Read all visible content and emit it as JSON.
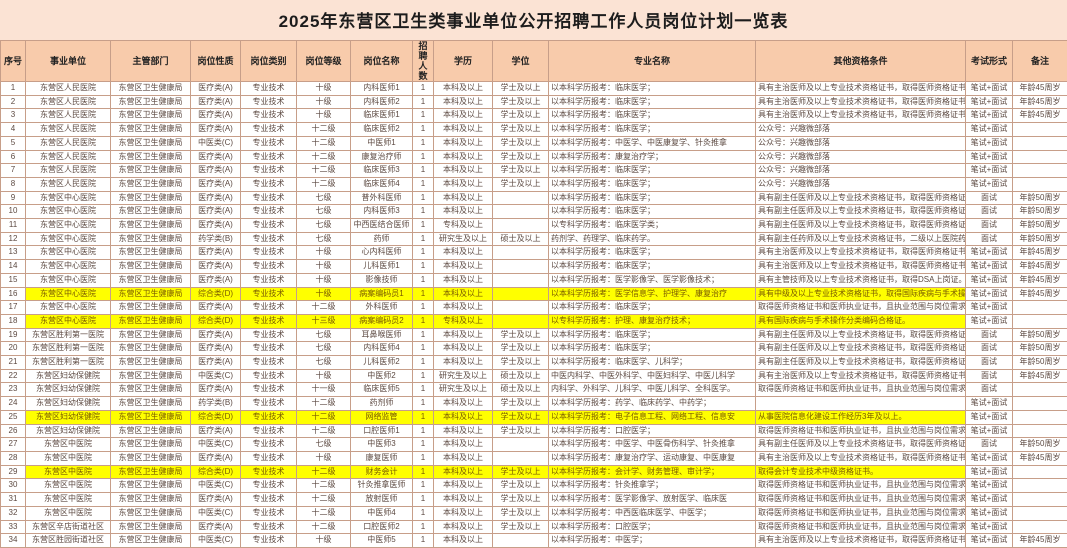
{
  "title": "2025年东营区卫生类事业单位公开招聘工作人员岗位计划一览表",
  "colors": {
    "page_background": "#fbe3d4",
    "header_background": "#f8cbab",
    "highlight": "#ffff00",
    "grid_line": "#c79e89"
  },
  "table": {
    "headers": [
      "序号",
      "事业单位",
      "主管部门",
      "岗位性质",
      "岗位类别",
      "岗位等级",
      "岗位名称",
      "招聘人数",
      "学历",
      "学位",
      "专业名称",
      "其他资格条件",
      "考试形式",
      "备注"
    ],
    "rows": [
      {
        "highlight": false,
        "cells": [
          "1",
          "东营区人民医院",
          "东营区卫生健康局",
          "医疗类(A)",
          "专业技术",
          "十级",
          "内科医师1",
          "1",
          "本科及以上",
          "学士及以上",
          "以本科学历报考：临床医学；",
          "具有主治医师及以上专业技术资格证书，取得医师资格证书",
          "笔试+面试",
          "年龄45周岁"
        ]
      },
      {
        "highlight": false,
        "cells": [
          "2",
          "东营区人民医院",
          "东营区卫生健康局",
          "医疗类(A)",
          "专业技术",
          "十级",
          "内科医师2",
          "1",
          "本科及以上",
          "学士及以上",
          "以本科学历报考：临床医学；",
          "具有主治医师及以上专业技术资格证书，取得医师资格证书",
          "笔试+面试",
          "年龄45周岁"
        ]
      },
      {
        "highlight": false,
        "cells": [
          "3",
          "东营区人民医院",
          "东营区卫生健康局",
          "医疗类(A)",
          "专业技术",
          "十级",
          "临床医师1",
          "1",
          "本科及以上",
          "学士及以上",
          "以本科学历报考：临床医学；",
          "具有主治医师及以上专业技术资格证书，取得医师资格证书",
          "笔试+面试",
          "年龄45周岁"
        ]
      },
      {
        "highlight": false,
        "cells": [
          "4",
          "东营区人民医院",
          "东营区卫生健康局",
          "医疗类(A)",
          "专业技术",
          "十二级",
          "临床医师2",
          "1",
          "本科及以上",
          "学士及以上",
          "以本科学历报考：临床医学；",
          "公众号：兴趣微部落",
          "笔试+面试",
          ""
        ]
      },
      {
        "highlight": false,
        "cells": [
          "5",
          "东营区人民医院",
          "东营区卫生健康局",
          "中医类(C)",
          "专业技术",
          "十二级",
          "中医师1",
          "1",
          "本科及以上",
          "学士及以上",
          "以本科学历报考：中医学、中医康复学、针灸推拿",
          "公众号：兴趣微部落",
          "笔试+面试",
          ""
        ]
      },
      {
        "highlight": false,
        "cells": [
          "6",
          "东营区人民医院",
          "东营区卫生健康局",
          "医疗类(A)",
          "专业技术",
          "十二级",
          "康复治疗师",
          "1",
          "本科及以上",
          "学士及以上",
          "以本科学历报考：康复治疗学；",
          "公众号：兴趣微部落",
          "笔试+面试",
          ""
        ]
      },
      {
        "highlight": false,
        "cells": [
          "7",
          "东营区人民医院",
          "东营区卫生健康局",
          "医疗类(A)",
          "专业技术",
          "十二级",
          "临床医师3",
          "1",
          "本科及以上",
          "学士及以上",
          "以本科学历报考：临床医学；",
          "公众号：兴趣微部落",
          "笔试+面试",
          ""
        ]
      },
      {
        "highlight": false,
        "cells": [
          "8",
          "东营区人民医院",
          "东营区卫生健康局",
          "医疗类(A)",
          "专业技术",
          "十二级",
          "临床医师4",
          "1",
          "本科及以上",
          "学士及以上",
          "以本科学历报考：临床医学；",
          "公众号：兴趣微部落",
          "笔试+面试",
          ""
        ]
      },
      {
        "highlight": false,
        "cells": [
          "9",
          "东营区中心医院",
          "东营区卫生健康局",
          "医疗类(A)",
          "专业技术",
          "七级",
          "普外科医师",
          "1",
          "本科及以上",
          "",
          "以本科学历报考：临床医学；",
          "具有副主任医师及以上专业技术资格证书，取得医师资格证",
          "面试",
          "年龄50周岁"
        ]
      },
      {
        "highlight": false,
        "cells": [
          "10",
          "东营区中心医院",
          "东营区卫生健康局",
          "医疗类(A)",
          "专业技术",
          "七级",
          "内科医师3",
          "1",
          "本科及以上",
          "",
          "以本科学历报考：临床医学；",
          "具有副主任医师及以上专业技术资格证书，取得医师资格证",
          "面试",
          "年龄50周岁"
        ]
      },
      {
        "highlight": false,
        "cells": [
          "11",
          "东营区中心医院",
          "东营区卫生健康局",
          "医疗类(A)",
          "专业技术",
          "七级",
          "中西医结合医师",
          "1",
          "专科及以上",
          "",
          "以专科学历报考：临床医学类；",
          "具有副主任医师及以上专业技术资格证书，取得医师资格证",
          "面试",
          "年龄50周岁"
        ]
      },
      {
        "highlight": false,
        "cells": [
          "12",
          "东营区中心医院",
          "东营区卫生健康局",
          "药学类(B)",
          "专业技术",
          "七级",
          "药师",
          "1",
          "研究生及以上",
          "硕士及以上",
          "药剂学、药理学、临床药学。",
          "具有副主任药师及以上专业技术资格证书，二级以上医院药",
          "面试",
          "年龄50周岁"
        ]
      },
      {
        "highlight": false,
        "cells": [
          "13",
          "东营区中心医院",
          "东营区卫生健康局",
          "医疗类(A)",
          "专业技术",
          "十级",
          "心内科医师",
          "1",
          "本科及以上",
          "",
          "以本科学历报考：临床医学；",
          "具有主治医师及以上专业技术资格证书，取得医师资格证书",
          "笔试+面试",
          "年龄45周岁"
        ]
      },
      {
        "highlight": false,
        "cells": [
          "14",
          "东营区中心医院",
          "东营区卫生健康局",
          "医疗类(A)",
          "专业技术",
          "十级",
          "儿科医师1",
          "1",
          "本科及以上",
          "",
          "以本科学历报考：临床医学；",
          "具有主治医师及以上专业技术资格证书，取得医师资格证书",
          "笔试+面试",
          "年龄45周岁"
        ]
      },
      {
        "highlight": false,
        "cells": [
          "15",
          "东营区中心医院",
          "东营区卫生健康局",
          "医疗类(A)",
          "专业技术",
          "十级",
          "影像技师",
          "1",
          "本科及以上",
          "",
          "以本科学历报考：医学影像学、医学影像技术；",
          "具有主管技师及以上专业技术资格证书，取得DSA上岗证。",
          "笔试+面试",
          "年龄45周岁"
        ]
      },
      {
        "highlight": true,
        "cells": [
          "16",
          "东营区中心医院",
          "东营区卫生健康局",
          "综合类(D)",
          "专业技术",
          "十级",
          "病案编码员1",
          "1",
          "本科及以上",
          "",
          "以本科学历报考：医学信息学、护理学、康复治疗",
          "具有中级及以上专业技术资格证书，取得国际疾病与手术操",
          "笔试+面试",
          "年龄45周岁"
        ]
      },
      {
        "highlight": false,
        "cells": [
          "17",
          "东营区中心医院",
          "东营区卫生健康局",
          "医疗类(A)",
          "专业技术",
          "十二级",
          "外科医师",
          "1",
          "本科及以上",
          "",
          "以本科学历报考：临床医学；",
          "取得医师资格证书和医师执业证书，且执业范围与岗位需求",
          "笔试+面试",
          ""
        ]
      },
      {
        "highlight": true,
        "cells": [
          "18",
          "东营区中心医院",
          "东营区卫生健康局",
          "综合类(D)",
          "专业技术",
          "十三级",
          "病案编码员2",
          "1",
          "专科及以上",
          "",
          "以专科学历报考：护理、康复治疗技术；",
          "具有国际疾病与手术操作分类编码合格证。",
          "笔试+面试",
          ""
        ]
      },
      {
        "highlight": false,
        "cells": [
          "19",
          "东营区胜利第一医院",
          "东营区卫生健康局",
          "医疗类(A)",
          "专业技术",
          "七级",
          "耳鼻喉医师",
          "1",
          "本科及以上",
          "学士及以上",
          "以本科学历报考：临床医学；",
          "具有副主任医师及以上专业技术资格证书，取得医师资格证",
          "面试",
          "年龄50周岁"
        ]
      },
      {
        "highlight": false,
        "cells": [
          "20",
          "东营区胜利第一医院",
          "东营区卫生健康局",
          "医疗类(A)",
          "专业技术",
          "七级",
          "内科医师4",
          "1",
          "本科及以上",
          "学士及以上",
          "以本科学历报考：临床医学；",
          "具有副主任医师及以上专业技术资格证书，取得医师资格证",
          "面试",
          "年龄50周岁"
        ]
      },
      {
        "highlight": false,
        "cells": [
          "21",
          "东营区胜利第一医院",
          "东营区卫生健康局",
          "医疗类(A)",
          "专业技术",
          "七级",
          "儿科医师2",
          "1",
          "本科及以上",
          "学士及以上",
          "以本科学历报考：临床医学、儿科学；",
          "具有副主任医师及以上专业技术资格证书，取得医师资格证",
          "面试",
          "年龄50周岁"
        ]
      },
      {
        "highlight": false,
        "cells": [
          "22",
          "东营区妇幼保健院",
          "东营区卫生健康局",
          "中医类(C)",
          "专业技术",
          "十级",
          "中医师2",
          "1",
          "研究生及以上",
          "硕士及以上",
          "中医内科学、中医外科学、中医妇科学、中医儿科学",
          "具有主治医师及以上专业技术资格证书，取得医师资格证书",
          "面试",
          "年龄45周岁"
        ]
      },
      {
        "highlight": false,
        "cells": [
          "23",
          "东营区妇幼保健院",
          "东营区卫生健康局",
          "医疗类(A)",
          "专业技术",
          "十一级",
          "临床医师5",
          "1",
          "研究生及以上",
          "硕士及以上",
          "内科学、外科学、儿科学、中医儿科学、全科医学。",
          "取得医师资格证书和医师执业证书，且执业范围与岗位需求",
          "面试",
          ""
        ]
      },
      {
        "highlight": false,
        "cells": [
          "24",
          "东营区妇幼保健院",
          "东营区卫生健康局",
          "药学类(B)",
          "专业技术",
          "十二级",
          "药剂师",
          "1",
          "本科及以上",
          "学士及以上",
          "以本科学历报考：药学、临床药学、中药学；",
          "",
          "笔试+面试",
          ""
        ]
      },
      {
        "highlight": true,
        "cells": [
          "25",
          "东营区妇幼保健院",
          "东营区卫生健康局",
          "综合类(D)",
          "专业技术",
          "十二级",
          "网络监管",
          "1",
          "本科及以上",
          "学士及以上",
          "以本科学历报考：电子信息工程、网络工程、信息安",
          "从事医院信息化建设工作经历3年及以上。",
          "笔试+面试",
          ""
        ]
      },
      {
        "highlight": false,
        "cells": [
          "26",
          "东营区妇幼保健院",
          "东营区卫生健康局",
          "医疗类(A)",
          "专业技术",
          "十二级",
          "口腔医师1",
          "1",
          "本科及以上",
          "学士及以上",
          "以本科学历报考：口腔医学；",
          "取得医师资格证书和医师执业证书，且执业范围与岗位需求",
          "笔试+面试",
          ""
        ]
      },
      {
        "highlight": false,
        "cells": [
          "27",
          "东营区中医院",
          "东营区卫生健康局",
          "中医类(C)",
          "专业技术",
          "七级",
          "中医师3",
          "1",
          "本科及以上",
          "",
          "以本科学历报考：中医学、中医骨伤科学、针灸推拿",
          "具有副主任医师及以上专业技术资格证书，取得医师资格证",
          "面试",
          "年龄50周岁"
        ]
      },
      {
        "highlight": false,
        "cells": [
          "28",
          "东营区中医院",
          "东营区卫生健康局",
          "医疗类(A)",
          "专业技术",
          "十级",
          "康复医师",
          "1",
          "本科及以上",
          "",
          "以本科学历报考：康复治疗学、运动康复、中医康复",
          "具有主治医师及以上专业技术资格证书，取得医师资格证书",
          "笔试+面试",
          "年龄45周岁"
        ]
      },
      {
        "highlight": true,
        "cells": [
          "29",
          "东营区中医院",
          "东营区卫生健康局",
          "综合类(D)",
          "专业技术",
          "十二级",
          "财务会计",
          "1",
          "本科及以上",
          "学士及以上",
          "以本科学历报考：会计学、财务管理、审计学；",
          "取得会计专业技术中级资格证书。",
          "笔试+面试",
          ""
        ]
      },
      {
        "highlight": false,
        "cells": [
          "30",
          "东营区中医院",
          "东营区卫生健康局",
          "中医类(C)",
          "专业技术",
          "十二级",
          "针灸推拿医师",
          "1",
          "本科及以上",
          "学士及以上",
          "以本科学历报考：针灸推拿学；",
          "取得医师资格证书和医师执业证书，且执业范围与岗位需求",
          "笔试+面试",
          ""
        ]
      },
      {
        "highlight": false,
        "cells": [
          "31",
          "东营区中医院",
          "东营区卫生健康局",
          "医疗类(A)",
          "专业技术",
          "十二级",
          "放射医师",
          "1",
          "本科及以上",
          "学士及以上",
          "以本科学历报考：医学影像学、放射医学、临床医",
          "取得医师资格证书和医师执业证书，且执业范围与岗位需求",
          "笔试+面试",
          ""
        ]
      },
      {
        "highlight": false,
        "cells": [
          "32",
          "东营区中医院",
          "东营区卫生健康局",
          "中医类(C)",
          "专业技术",
          "十二级",
          "中医师4",
          "1",
          "本科及以上",
          "学士及以上",
          "以本科学历报考：中西医临床医学、中医学；",
          "取得医师资格证书和医师执业证书，且执业范围与岗位需求",
          "笔试+面试",
          ""
        ]
      },
      {
        "highlight": false,
        "cells": [
          "33",
          "东营区辛店街道社区",
          "东营区卫生健康局",
          "医疗类(A)",
          "专业技术",
          "十二级",
          "口腔医师2",
          "1",
          "本科及以上",
          "学士及以上",
          "以本科学历报考：口腔医学；",
          "取得医师资格证书和医师执业证书，且执业范围与岗位需求",
          "笔试+面试",
          ""
        ]
      },
      {
        "highlight": false,
        "cells": [
          "34",
          "东营区胜园街道社区",
          "东营区卫生健康局",
          "中医类(C)",
          "专业技术",
          "十级",
          "中医师5",
          "1",
          "本科及以上",
          "",
          "以本科学历报考：中医学；",
          "具有主治医师及以上专业技术资格证书，取得医师资格证书",
          "笔试+面试",
          "年龄45周岁"
        ]
      }
    ]
  }
}
